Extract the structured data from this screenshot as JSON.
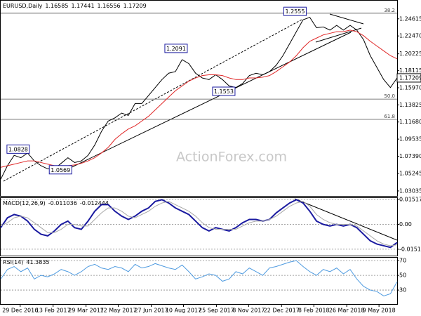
{
  "header": {
    "symbol": "EURUSD,Daily",
    "open": 1.16585,
    "high": 1.17441,
    "low": 1.16556
  },
  "watermark": "ActionForex.com",
  "chart_data": [
    {
      "type": "line",
      "xlim": [
        0,
        59
      ],
      "ylim": [
        1.025,
        1.268
      ],
      "yticks": [
        1.24615,
        {
          "value": 1.2247,
          "label": "1.22470"
        },
        1.20225,
        1.18115,
        {
          "value": 1.1597,
          "label": "1.15970"
        },
        1.13825,
        {
          "value": 1.1168,
          "label": "1.11680"
        },
        1.09535,
        {
          "value": 1.0739,
          "label": "1.07390"
        },
        1.05245,
        1.03035
      ],
      "series": [
        {
          "name": "EURUSD",
          "color": "#000000",
          "values": [
            1.045,
            1.062,
            1.075,
            1.072,
            1.078,
            1.068,
            1.062,
            1.058,
            1.058,
            1.065,
            1.072,
            1.066,
            1.068,
            1.075,
            1.088,
            1.105,
            1.118,
            1.122,
            1.128,
            1.125,
            1.14,
            1.14,
            1.15,
            1.16,
            1.17,
            1.178,
            1.18,
            1.195,
            1.19,
            1.178,
            1.172,
            1.17,
            1.176,
            1.17,
            1.162,
            1.16,
            1.165,
            1.175,
            1.178,
            1.176,
            1.18,
            1.188,
            1.2,
            1.215,
            1.23,
            1.245,
            1.248,
            1.235,
            1.236,
            1.232,
            1.238,
            1.232,
            1.238,
            1.232,
            1.22,
            1.2,
            1.185,
            1.17,
            1.16,
            1.17209
          ]
        },
        {
          "name": "MA",
          "color": "#e02828",
          "values": [
            1.06,
            1.062,
            1.064,
            1.066,
            1.068,
            1.068,
            1.066,
            1.064,
            1.062,
            1.062,
            1.062,
            1.063,
            1.065,
            1.068,
            1.072,
            1.078,
            1.085,
            1.095,
            1.102,
            1.108,
            1.112,
            1.118,
            1.124,
            1.132,
            1.14,
            1.148,
            1.156,
            1.162,
            1.168,
            1.172,
            1.175,
            1.176,
            1.176,
            1.175,
            1.172,
            1.17,
            1.17,
            1.172,
            1.172,
            1.173,
            1.175,
            1.18,
            1.186,
            1.192,
            1.2,
            1.21,
            1.218,
            1.222,
            1.226,
            1.228,
            1.23,
            1.23,
            1.232,
            1.23,
            1.225,
            1.218,
            1.212,
            1.206,
            1.2,
            1.196
          ]
        }
      ],
      "annotations": [
        {
          "x": 2.6,
          "value": 1.0828
        },
        {
          "x": 8.9,
          "value": 1.0569
        },
        {
          "x": 26.1,
          "value": 1.2091
        },
        {
          "x": 33.2,
          "value": 1.1553
        },
        {
          "x": 43.8,
          "value": 1.2555
        }
      ],
      "levels": [
        {
          "name": "38.2",
          "value": 1.2532
        },
        {
          "name": "50.0",
          "value": 1.1455
        },
        {
          "name": "61.8",
          "value": 1.1201
        }
      ]
    },
    {
      "type": "line",
      "title": "MACD(12,26,9)",
      "xlim": [
        0,
        59
      ],
      "ylim": [
        -0.019,
        0.0156
      ],
      "yticks": [
        0.015176,
        {
          "value": 0,
          "label": "0.00"
        },
        -0.015109
      ],
      "series": [
        {
          "name": "MACD",
          "color": "#1a1aa0",
          "values": [
            -0.002,
            0.004,
            0.006,
            0.005,
            0.002,
            -0.003,
            -0.006,
            -0.007,
            -0.004,
            0.0,
            0.002,
            -0.002,
            -0.003,
            0.002,
            0.008,
            0.012,
            0.012,
            0.008,
            0.005,
            0.003,
            0.005,
            0.008,
            0.01,
            0.014,
            0.015,
            0.013,
            0.01,
            0.008,
            0.006,
            0.002,
            -0.002,
            -0.004,
            -0.002,
            -0.003,
            -0.004,
            -0.002,
            0.001,
            0.003,
            0.003,
            0.002,
            0.003,
            0.007,
            0.01,
            0.013,
            0.015,
            0.013,
            0.008,
            0.002,
            0.0,
            -0.001,
            0.0,
            -0.001,
            0.0,
            -0.002,
            -0.006,
            -0.01,
            -0.012,
            -0.013,
            -0.014,
            -0.011036
          ]
        },
        {
          "name": "Signal",
          "color": "#a8a8a8",
          "values": [
            -0.001,
            0.001,
            0.004,
            0.005,
            0.004,
            0.001,
            -0.002,
            -0.005,
            -0.005,
            -0.003,
            0.0,
            0.0,
            -0.001,
            -0.001,
            0.003,
            0.007,
            0.01,
            0.01,
            0.008,
            0.005,
            0.004,
            0.006,
            0.008,
            0.011,
            0.013,
            0.014,
            0.012,
            0.01,
            0.008,
            0.005,
            0.001,
            -0.002,
            -0.003,
            -0.003,
            -0.003,
            -0.003,
            -0.001,
            0.001,
            0.002,
            0.002,
            0.003,
            0.005,
            0.008,
            0.011,
            0.013,
            0.014,
            0.011,
            0.006,
            0.003,
            0.001,
            0.0,
            0.0,
            0.0,
            -0.001,
            -0.004,
            -0.007,
            -0.01,
            -0.012,
            -0.013,
            -0.012444
          ]
        }
      ]
    },
    {
      "type": "line",
      "title": "RSI(14)",
      "xlim": [
        0,
        59
      ],
      "ylim": [
        11,
        73
      ],
      "yticks": [
        70,
        50,
        30
      ],
      "xticks": [
        {
          "value": 2.9,
          "label": "29 Dec 2016"
        },
        {
          "value": 7.8,
          "label": "13 Feb 2017"
        },
        {
          "value": 12.7,
          "label": "29 Mar 2017"
        },
        {
          "value": 17.5,
          "label": "12 May 2017"
        },
        {
          "value": 22.4,
          "label": "27 Jun 2017"
        },
        {
          "value": 27.2,
          "label": "10 Aug 2017"
        },
        {
          "value": 32.1,
          "label": "25 Sep 2017"
        },
        {
          "value": 36.9,
          "label": "8 Nov 2017"
        },
        {
          "value": 41.8,
          "label": "22 Dec 2017"
        },
        {
          "value": 46.6,
          "label": "8 Feb 2018"
        },
        {
          "value": 51.5,
          "label": "26 Mar 2018"
        },
        {
          "value": 56.3,
          "label": "9 May 2018"
        }
      ],
      "series": [
        {
          "name": "RSI",
          "color": "#4f9be0",
          "values": [
            45,
            58,
            62,
            55,
            60,
            45,
            50,
            48,
            52,
            58,
            55,
            50,
            55,
            62,
            65,
            60,
            58,
            62,
            60,
            55,
            65,
            60,
            62,
            66,
            63,
            60,
            58,
            64,
            55,
            45,
            48,
            52,
            50,
            42,
            45,
            55,
            52,
            60,
            55,
            50,
            60,
            62,
            65,
            68,
            70,
            62,
            55,
            50,
            58,
            55,
            60,
            52,
            58,
            45,
            35,
            30,
            28,
            22,
            25,
            41.3835
          ]
        }
      ]
    }
  ]
}
